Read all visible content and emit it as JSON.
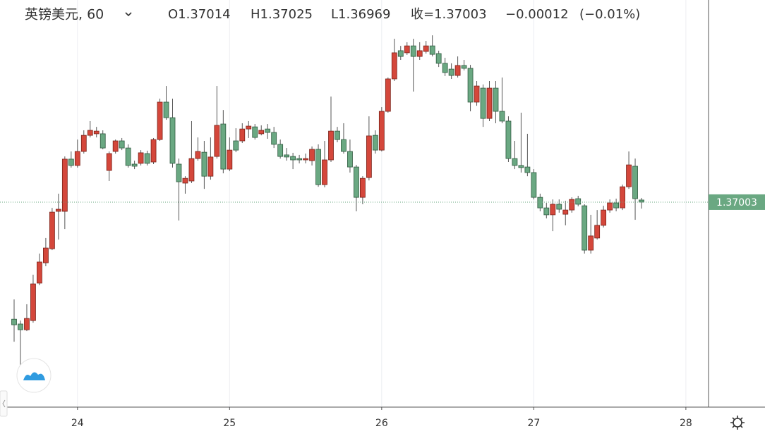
{
  "header": {
    "symbol": "英镑美元, 60",
    "open_label": "O",
    "high_label": "H",
    "low_label": "L",
    "close_label": "收=",
    "change": {
      "value": -0.00012,
      "label": "−0.00012"
    },
    "change_pct": {
      "value": -0.01,
      "label": "(−0.01%)"
    }
  },
  "chart_data": {
    "type": "candlestick",
    "categories": [
      null,
      null,
      null,
      null,
      null,
      null,
      null,
      null,
      null,
      null,
      "24",
      null,
      null,
      null,
      null,
      null,
      null,
      null,
      null,
      null,
      null,
      null,
      null,
      null,
      null,
      null,
      null,
      null,
      null,
      null,
      null,
      null,
      null,
      null,
      "25",
      null,
      null,
      null,
      null,
      null,
      null,
      null,
      null,
      null,
      null,
      null,
      null,
      null,
      null,
      null,
      null,
      null,
      null,
      null,
      null,
      null,
      null,
      null,
      "26",
      null,
      null,
      null,
      null,
      null,
      null,
      null,
      null,
      null,
      null,
      null,
      null,
      null,
      null,
      null,
      null,
      null,
      null,
      null,
      null,
      null,
      null,
      null,
      "27",
      null,
      null,
      null,
      null,
      null,
      null,
      null,
      null,
      null,
      null,
      null,
      null,
      null,
      null,
      null,
      null,
      null,
      null,
      null,
      null,
      null,
      null,
      null,
      "28"
    ],
    "open": [
      1.36393,
      1.36368,
      1.36338,
      1.36386,
      1.36581,
      1.36687,
      1.3676,
      1.36955,
      1.36955,
      1.37227,
      1.37194,
      1.37267,
      1.37351,
      1.37359,
      1.37359,
      1.37168,
      1.37267,
      1.37322,
      1.37285,
      1.37201,
      1.37205,
      1.37256,
      1.37212,
      1.37329,
      1.37524,
      1.37443,
      1.37201,
      1.37102,
      1.37113,
      1.3723,
      1.37263,
      1.37138,
      1.37241,
      1.3741,
      1.37175,
      1.37322,
      1.37322,
      1.37384,
      1.37395,
      1.37359,
      1.37384,
      1.37366,
      1.37304,
      1.37249,
      1.37241,
      1.3723,
      1.37223,
      1.37219,
      1.37278,
      1.37094,
      1.37223,
      1.37373,
      1.37329,
      1.37267,
      1.37186,
      1.37028,
      1.37131,
      1.37351,
      1.37274,
      1.37476,
      1.37645,
      1.37792,
      1.37781,
      1.37817,
      1.37762,
      1.37788,
      1.37817,
      1.37777,
      1.37726,
      1.37696,
      1.37663,
      1.37715,
      1.377,
      1.37524,
      1.37597,
      1.37439,
      1.37597,
      1.37476,
      1.37425,
      1.3723,
      1.37194,
      1.37186,
      1.37157,
      1.37028,
      1.36973,
      1.36937,
      1.36992,
      1.3694,
      1.36962,
      1.37021,
      1.36984,
      1.36753,
      1.36816,
      1.36882,
      1.36962,
      1.36999,
      1.36973,
      1.37083,
      1.3719,
      1.37014,
      null,
      null,
      null,
      null,
      null,
      null,
      null
    ],
    "high": [
      1.36496,
      1.36386,
      1.36471,
      1.36625,
      1.36735,
      1.36816,
      1.36973,
      1.37047,
      1.37241,
      1.37267,
      1.37329,
      1.37377,
      1.37425,
      1.37395,
      1.37377,
      1.37267,
      1.37329,
      1.37337,
      1.37304,
      1.37219,
      1.37274,
      1.37271,
      1.37337,
      1.37542,
      1.37608,
      1.37542,
      1.3723,
      1.37138,
      1.37425,
      1.3734,
      1.37322,
      1.3734,
      1.37608,
      1.37483,
      1.3734,
      1.37388,
      1.37414,
      1.37425,
      1.3741,
      1.37403,
      1.3741,
      1.37395,
      1.37329,
      1.37285,
      1.3726,
      1.37249,
      1.37256,
      1.37293,
      1.37304,
      1.37322,
      1.37553,
      1.37395,
      1.37414,
      1.37329,
      1.37197,
      1.37138,
      1.3745,
      1.37377,
      1.37498,
      1.37652,
      1.37854,
      1.37817,
      1.37836,
      1.37854,
      1.37836,
      1.37843,
      1.37872,
      1.37792,
      1.37755,
      1.37726,
      1.37762,
      1.37744,
      1.37718,
      1.37634,
      1.37616,
      1.37634,
      1.37634,
      1.37652,
      1.3745,
      1.37322,
      1.37469,
      1.37359,
      1.37175,
      1.37047,
      1.36999,
      1.37017,
      1.37017,
      1.3701,
      1.37028,
      1.37036,
      1.36992,
      1.36937,
      1.36962,
      1.36984,
      1.37017,
      1.37021,
      1.37094,
      1.37267,
      1.3723,
      1.37025,
      null,
      null,
      null,
      null,
      null,
      null,
      null
    ],
    "low": [
      1.36276,
      1.36129,
      1.36331,
      1.36375,
      1.3657,
      1.36669,
      1.36753,
      1.36808,
      1.36863,
      1.37183,
      1.37183,
      1.37256,
      1.3734,
      1.3734,
      1.37278,
      1.37113,
      1.37256,
      1.37274,
      1.37183,
      1.37175,
      1.37194,
      1.37194,
      1.37201,
      1.37322,
      1.37432,
      1.37183,
      1.36907,
      1.37047,
      1.37102,
      1.37219,
      1.37072,
      1.3712,
      1.3723,
      1.37153,
      1.37164,
      1.37263,
      1.37311,
      1.37337,
      1.37329,
      1.37351,
      1.37333,
      1.37285,
      1.3723,
      1.37219,
      1.37175,
      1.37205,
      1.37205,
      1.37194,
      1.37083,
      1.3708,
      1.37212,
      1.37315,
      1.37256,
      1.37157,
      1.36955,
      1.36992,
      1.37116,
      1.37256,
      1.37267,
      1.37469,
      1.37634,
      1.37744,
      1.3777,
      1.37579,
      1.37744,
      1.37777,
      1.37762,
      1.37707,
      1.3766,
      1.37645,
      1.37652,
      1.37689,
      1.37476,
      1.37505,
      1.37395,
      1.37425,
      1.37414,
      1.37414,
      1.37212,
      1.37175,
      1.37157,
      1.37138,
      1.37017,
      1.36955,
      1.36918,
      1.36852,
      1.36948,
      1.36882,
      1.36948,
      1.36981,
      1.36735,
      1.36735,
      1.36808,
      1.36871,
      1.36948,
      1.36955,
      1.36962,
      1.37072,
      1.36911,
      1.36969,
      null,
      null,
      null,
      null,
      null,
      null,
      null
    ],
    "close": [
      1.36364,
      1.36338,
      1.36397,
      1.36577,
      1.36691,
      1.36764,
      1.36951,
      1.36966,
      1.37227,
      1.37194,
      1.37267,
      1.37351,
      1.37377,
      1.37373,
      1.37285,
      1.37256,
      1.37322,
      1.37285,
      1.37194,
      1.3719,
      1.3726,
      1.37205,
      1.37329,
      1.37524,
      1.37443,
      1.37205,
      1.37109,
      1.37127,
      1.3723,
      1.37267,
      1.37138,
      1.37238,
      1.37403,
      1.37175,
      1.37274,
      1.37274,
      1.37384,
      1.37399,
      1.3734,
      1.37377,
      1.37366,
      1.37304,
      1.37241,
      1.37238,
      1.37223,
      1.37223,
      1.3723,
      1.37278,
      1.37094,
      1.37223,
      1.37373,
      1.37329,
      1.37267,
      1.37186,
      1.37028,
      1.37127,
      1.37348,
      1.37274,
      1.37476,
      1.37645,
      1.37781,
      1.37762,
      1.37817,
      1.37762,
      1.37792,
      1.37817,
      1.37773,
      1.37726,
      1.37678,
      1.37663,
      1.37715,
      1.377,
      1.37524,
      1.37608,
      1.37439,
      1.37597,
      1.37476,
      1.37425,
      1.3723,
      1.37194,
      1.37183,
      1.37157,
      1.37028,
      1.36973,
      1.36937,
      1.36992,
      1.36966,
      1.36962,
      1.37017,
      1.36992,
      1.36753,
      1.36827,
      1.36882,
      1.36962,
      1.36999,
      1.36973,
      1.37083,
      1.37197,
      1.37021,
      1.37003,
      null,
      null,
      null,
      null,
      null,
      null,
      null
    ],
    "up_color": "#d4473b",
    "down_color": "#6aa882",
    "ylim": [
      1.35935,
      1.38056
    ],
    "grid": true,
    "last_price_line": true
  }
}
